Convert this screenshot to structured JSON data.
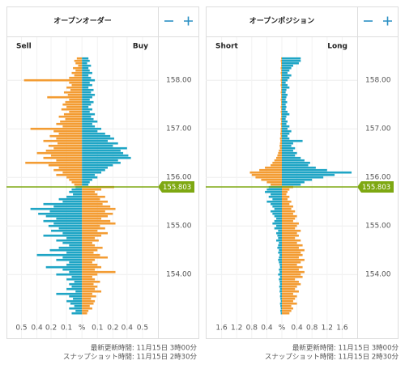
{
  "chart_data": [
    {
      "type": "book",
      "title": "オープンオーダー",
      "current_price": 155.803,
      "ylim": [
        153.12,
        158.52
      ],
      "yticks": [
        {
          "value": 158,
          "label": "158.00"
        },
        {
          "value": 157,
          "label": "157.00"
        },
        {
          "value": 156,
          "label": "156.00"
        },
        {
          "value": 155,
          "label": "155.00"
        },
        {
          "value": 154,
          "label": "154.00"
        }
      ],
      "xlim": [
        -0.58,
        0.59
      ],
      "xticks": [
        {
          "value": -0.47,
          "label": "0.5"
        },
        {
          "value": -0.35,
          "label": "0.4"
        },
        {
          "value": -0.24,
          "label": "0.2"
        },
        {
          "value": -0.12,
          "label": "0.1"
        },
        {
          "value": 0,
          "label": "%"
        },
        {
          "value": 0.12,
          "label": "0.1"
        },
        {
          "value": 0.24,
          "label": "0.2"
        },
        {
          "value": 0.35,
          "label": "0.4"
        },
        {
          "value": 0.47,
          "label": "0.5"
        }
      ],
      "grid": true,
      "color_above": [
        "#f39c33",
        "#1fa5c5"
      ],
      "color_below": [
        "#1fa5c5",
        "#f39c33"
      ],
      "line_color": "#7ea812",
      "levels": [
        158.45,
        158.4,
        158.35,
        158.3,
        158.25,
        158.2,
        158.15,
        158.1,
        158.05,
        158,
        157.95,
        157.9,
        157.85,
        157.8,
        157.75,
        157.7,
        157.65,
        157.6,
        157.55,
        157.5,
        157.45,
        157.4,
        157.35,
        157.3,
        157.25,
        157.2,
        157.15,
        157.1,
        157.05,
        157,
        156.95,
        156.9,
        156.85,
        156.8,
        156.75,
        156.7,
        156.65,
        156.6,
        156.55,
        156.5,
        156.45,
        156.4,
        156.35,
        156.3,
        156.25,
        156.2,
        156.15,
        156.1,
        156.05,
        156,
        155.95,
        155.9,
        155.85,
        155.8,
        155.75,
        155.7,
        155.65,
        155.6,
        155.55,
        155.5,
        155.45,
        155.4,
        155.35,
        155.3,
        155.25,
        155.2,
        155.15,
        155.1,
        155.05,
        155,
        154.95,
        154.9,
        154.85,
        154.8,
        154.75,
        154.7,
        154.65,
        154.6,
        154.55,
        154.5,
        154.45,
        154.4,
        154.35,
        154.3,
        154.25,
        154.2,
        154.15,
        154.1,
        154.05,
        154,
        153.95,
        153.9,
        153.85,
        153.8,
        153.75,
        153.7,
        153.65,
        153.6,
        153.55,
        153.5,
        153.45,
        153.4,
        153.35,
        153.3,
        153.25,
        153.2
      ],
      "series": [
        {
          "name": "Sell",
          "side": "left",
          "values": [
            0.04,
            0.06,
            0.05,
            0.03,
            0.07,
            0.05,
            0.08,
            0.06,
            0.1,
            0.45,
            0.1,
            0.08,
            0.12,
            0.09,
            0.14,
            0.11,
            0.27,
            0.1,
            0.13,
            0.15,
            0.12,
            0.16,
            0.1,
            0.14,
            0.18,
            0.13,
            0.17,
            0.2,
            0.15,
            0.4,
            0.22,
            0.18,
            0.25,
            0.2,
            0.3,
            0.19,
            0.26,
            0.22,
            0.28,
            0.35,
            0.24,
            0.3,
            0.2,
            0.44,
            0.26,
            0.18,
            0.22,
            0.15,
            0.2,
            0.12,
            0.1,
            0.08,
            0.06,
            0.05,
            0.08,
            0.1,
            0.07,
            0.12,
            0.18,
            0.15,
            0.3,
            0.22,
            0.4,
            0.25,
            0.34,
            0.28,
            0.2,
            0.3,
            0.22,
            0.26,
            0.18,
            0.24,
            0.15,
            0.3,
            0.12,
            0.2,
            0.15,
            0.1,
            0.18,
            0.25,
            0.12,
            0.35,
            0.15,
            0.2,
            0.1,
            0.12,
            0.28,
            0.15,
            0.1,
            0.2,
            0.08,
            0.12,
            0.06,
            0.1,
            0.08,
            0.12,
            0.05,
            0.2,
            0.1,
            0.07,
            0.12,
            0.09,
            0.06,
            0.1,
            0.05,
            0.08
          ]
        },
        {
          "name": "Buy",
          "side": "right",
          "values": [
            0.05,
            0.06,
            0.04,
            0.07,
            0.05,
            0.06,
            0.08,
            0.05,
            0.07,
            0.1,
            0.06,
            0.08,
            0.05,
            0.09,
            0.07,
            0.1,
            0.08,
            0.06,
            0.09,
            0.07,
            0.05,
            0.08,
            0.06,
            0.1,
            0.07,
            0.09,
            0.12,
            0.08,
            0.1,
            0.15,
            0.12,
            0.18,
            0.22,
            0.25,
            0.2,
            0.28,
            0.24,
            0.35,
            0.3,
            0.32,
            0.36,
            0.38,
            0.28,
            0.3,
            0.24,
            0.2,
            0.18,
            0.15,
            0.1,
            0.12,
            0.08,
            0.06,
            0.05,
            0.25,
            0.15,
            0.1,
            0.12,
            0.18,
            0.14,
            0.2,
            0.16,
            0.22,
            0.26,
            0.18,
            0.24,
            0.2,
            0.15,
            0.22,
            0.26,
            0.14,
            0.18,
            0.12,
            0.2,
            0.15,
            0.1,
            0.13,
            0.08,
            0.1,
            0.16,
            0.12,
            0.09,
            0.14,
            0.2,
            0.1,
            0.08,
            0.12,
            0.15,
            0.1,
            0.26,
            0.12,
            0.08,
            0.1,
            0.14,
            0.09,
            0.12,
            0.1,
            0.15,
            0.08,
            0.11,
            0.07,
            0.1,
            0.09,
            0.06,
            0.08,
            0.05,
            0.04
          ]
        }
      ],
      "footer": [
        "最新更新時間: 11月15日 3時00分",
        "スナップショット時間: 11月15日 2時30分"
      ]
    },
    {
      "type": "book",
      "title": "オープンポジション",
      "current_price": 155.803,
      "ylim": [
        153.12,
        158.52
      ],
      "yticks": [
        {
          "value": 158,
          "label": "158.00"
        },
        {
          "value": 157,
          "label": "157.00"
        },
        {
          "value": 156,
          "label": "156.00"
        },
        {
          "value": 155,
          "label": "155.00"
        },
        {
          "value": 154,
          "label": "154.00"
        }
      ],
      "xlim": [
        -2,
        2
      ],
      "xticks": [
        {
          "value": -1.6,
          "label": "1.6"
        },
        {
          "value": -1.2,
          "label": "1.2"
        },
        {
          "value": -0.8,
          "label": "0.8"
        },
        {
          "value": -0.4,
          "label": "0.4"
        },
        {
          "value": 0,
          "label": "%"
        },
        0.4,
        0.8,
        1.2,
        1.6
      ],
      "grid": true,
      "color_above": [
        "#f39c33",
        "#1fa5c5"
      ],
      "color_below": [
        "#1fa5c5",
        "#f39c33"
      ],
      "line_color": "#7ea812",
      "levels": [
        158.45,
        158.4,
        158.35,
        158.3,
        158.25,
        158.2,
        158.15,
        158.1,
        158.05,
        158,
        157.95,
        157.9,
        157.85,
        157.8,
        157.75,
        157.7,
        157.65,
        157.6,
        157.55,
        157.5,
        157.45,
        157.4,
        157.35,
        157.3,
        157.25,
        157.2,
        157.15,
        157.1,
        157.05,
        157,
        156.95,
        156.9,
        156.85,
        156.8,
        156.75,
        156.7,
        156.65,
        156.6,
        156.55,
        156.5,
        156.45,
        156.4,
        156.35,
        156.3,
        156.25,
        156.2,
        156.15,
        156.1,
        156.05,
        156,
        155.95,
        155.9,
        155.85,
        155.8,
        155.75,
        155.7,
        155.65,
        155.6,
        155.55,
        155.5,
        155.45,
        155.4,
        155.35,
        155.3,
        155.25,
        155.2,
        155.15,
        155.1,
        155.05,
        155,
        154.95,
        154.9,
        154.85,
        154.8,
        154.75,
        154.7,
        154.65,
        154.6,
        154.55,
        154.5,
        154.45,
        154.4,
        154.35,
        154.3,
        154.25,
        154.2,
        154.15,
        154.1,
        154.05,
        154,
        153.95,
        153.9,
        153.85,
        153.8,
        153.75,
        153.7,
        153.65,
        153.6,
        153.55,
        153.5,
        153.45,
        153.4,
        153.35,
        153.3,
        153.25,
        153.2
      ],
      "series": [
        {
          "name": "Short",
          "side": "left",
          "values": [
            0.02,
            0.03,
            0.02,
            0.02,
            0.03,
            0.02,
            0.03,
            0.02,
            0.02,
            0.03,
            0.02,
            0.03,
            0.02,
            0.02,
            0.03,
            0.02,
            0.02,
            0.03,
            0.02,
            0.02,
            0.03,
            0.02,
            0.03,
            0.02,
            0.02,
            0.03,
            0.02,
            0.03,
            0.02,
            0.03,
            0.03,
            0.04,
            0.03,
            0.05,
            0.04,
            0.05,
            0.06,
            0.05,
            0.08,
            0.1,
            0.12,
            0.15,
            0.2,
            0.25,
            0.3,
            0.45,
            0.6,
            0.85,
            0.8,
            0.7,
            0.55,
            0.4,
            0.3,
            0.35,
            0.4,
            0.45,
            0.3,
            0.35,
            0.25,
            0.4,
            0.3,
            0.25,
            0.2,
            0.3,
            0.25,
            0.2,
            0.15,
            0.2,
            0.25,
            0.15,
            0.2,
            0.1,
            0.15,
            0.12,
            0.1,
            0.15,
            0.08,
            0.1,
            0.12,
            0.08,
            0.1,
            0.06,
            0.08,
            0.1,
            0.08,
            0.06,
            0.05,
            0.08,
            0.06,
            0.1,
            0.05,
            0.08,
            0.06,
            0.05,
            0.07,
            0.05,
            0.06,
            0.04,
            0.05,
            0.04,
            0.03,
            0.05,
            0.04,
            0.03,
            0.04,
            0.03
          ]
        },
        {
          "name": "Long",
          "side": "right",
          "values": [
            0.5,
            0.5,
            0.45,
            0.3,
            0.25,
            0.2,
            0.15,
            0.25,
            0.2,
            0.15,
            0.1,
            0.15,
            0.2,
            0.12,
            0.1,
            0.15,
            0.12,
            0.1,
            0.14,
            0.1,
            0.12,
            0.1,
            0.15,
            0.2,
            0.12,
            0.1,
            0.15,
            0.12,
            0.2,
            0.15,
            0.25,
            0.2,
            0.15,
            0.2,
            0.55,
            0.3,
            0.25,
            0.35,
            0.3,
            0.4,
            0.35,
            0.5,
            0.6,
            0.75,
            0.7,
            0.9,
            1.2,
            1.85,
            1.4,
            1.1,
            0.8,
            0.6,
            0.5,
            0.3,
            0.2,
            0.15,
            0.12,
            0.2,
            0.15,
            0.25,
            0.2,
            0.3,
            0.25,
            0.35,
            0.3,
            0.4,
            0.35,
            0.3,
            0.45,
            0.4,
            0.35,
            0.5,
            0.4,
            0.45,
            0.35,
            0.5,
            0.4,
            0.55,
            0.45,
            0.6,
            0.5,
            0.55,
            0.45,
            0.6,
            0.5,
            0.4,
            0.55,
            0.45,
            0.6,
            0.5,
            0.55,
            0.35,
            0.45,
            0.5,
            0.4,
            0.35,
            0.45,
            0.3,
            0.4,
            0.35,
            0.3,
            0.4,
            0.25,
            0.3,
            0.25,
            0.2
          ]
        }
      ],
      "footer": [
        "最新更新時間: 11月15日 3時00分",
        "スナップショット時間: 11月15日 2時30分"
      ]
    }
  ]
}
